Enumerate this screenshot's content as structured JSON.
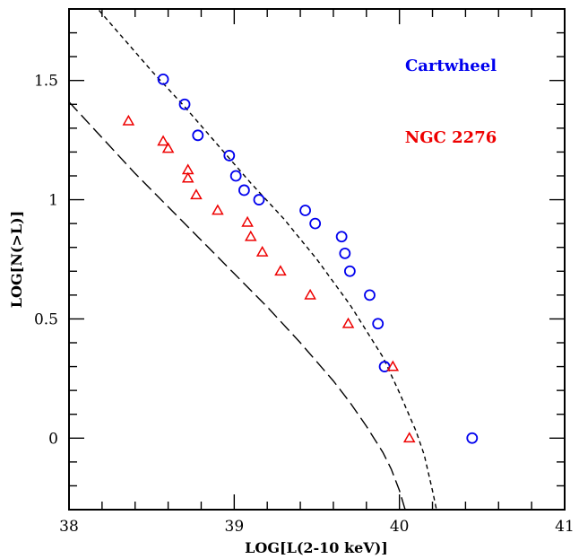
{
  "chart_data": {
    "type": "scatter",
    "xlabel": "LOG[L(2-10 keV)]",
    "ylabel": "LOG[N(>L)]",
    "xlim": [
      38,
      41
    ],
    "ylim": [
      -0.3,
      1.8
    ],
    "x_ticks": [
      {
        "value": 38,
        "label": "38"
      },
      {
        "value": 39,
        "label": "39"
      },
      {
        "value": 40,
        "label": "40"
      },
      {
        "value": 41,
        "label": "41"
      }
    ],
    "y_ticks": [
      {
        "value": 0,
        "label": "0"
      },
      {
        "value": 0.5,
        "label": "0.5"
      },
      {
        "value": 1,
        "label": "1"
      },
      {
        "value": 1.5,
        "label": "1.5"
      }
    ],
    "x_minor_step": 0.2,
    "y_minor_step": 0.1,
    "legend_placement": "top-right",
    "series": [
      {
        "name": "Cartwheel",
        "marker": "circle",
        "color": "#0000ee",
        "points": [
          [
            38.57,
            1.505
          ],
          [
            38.7,
            1.4
          ],
          [
            38.78,
            1.27
          ],
          [
            38.97,
            1.185
          ],
          [
            39.01,
            1.1
          ],
          [
            39.06,
            1.04
          ],
          [
            39.15,
            1.0
          ],
          [
            39.43,
            0.955
          ],
          [
            39.49,
            0.9
          ],
          [
            39.65,
            0.845
          ],
          [
            39.67,
            0.775
          ],
          [
            39.7,
            0.7
          ],
          [
            39.82,
            0.6
          ],
          [
            39.87,
            0.48
          ],
          [
            39.91,
            0.3
          ],
          [
            40.44,
            0.0
          ]
        ]
      },
      {
        "name": "NGC 2276",
        "marker": "triangle",
        "color": "#ee0000",
        "points": [
          [
            38.36,
            1.33
          ],
          [
            38.57,
            1.245
          ],
          [
            38.6,
            1.215
          ],
          [
            38.72,
            1.125
          ],
          [
            38.72,
            1.09
          ],
          [
            38.77,
            1.02
          ],
          [
            38.9,
            0.955
          ],
          [
            39.08,
            0.905
          ],
          [
            39.1,
            0.845
          ],
          [
            39.17,
            0.78
          ],
          [
            39.28,
            0.7
          ],
          [
            39.46,
            0.6
          ],
          [
            39.69,
            0.48
          ],
          [
            39.96,
            0.3
          ],
          [
            40.06,
            0.0
          ]
        ]
      }
    ],
    "curves": [
      {
        "style": "short-dashed",
        "points": [
          [
            38.15,
            1.82
          ],
          [
            38.3,
            1.7
          ],
          [
            38.5,
            1.54
          ],
          [
            38.7,
            1.39
          ],
          [
            38.9,
            1.23
          ],
          [
            39.1,
            1.07
          ],
          [
            39.3,
            0.92
          ],
          [
            39.5,
            0.75
          ],
          [
            39.7,
            0.56
          ],
          [
            39.8,
            0.45
          ],
          [
            39.9,
            0.34
          ],
          [
            40.0,
            0.19
          ],
          [
            40.1,
            0.03
          ],
          [
            40.15,
            -0.07
          ],
          [
            40.2,
            -0.22
          ],
          [
            40.23,
            -0.32
          ]
        ]
      },
      {
        "style": "long-dashed",
        "points": [
          [
            38.0,
            1.41
          ],
          [
            38.2,
            1.26
          ],
          [
            38.4,
            1.11
          ],
          [
            38.6,
            0.97
          ],
          [
            38.8,
            0.83
          ],
          [
            39.0,
            0.69
          ],
          [
            39.2,
            0.55
          ],
          [
            39.4,
            0.4
          ],
          [
            39.6,
            0.24
          ],
          [
            39.7,
            0.15
          ],
          [
            39.8,
            0.05
          ],
          [
            39.9,
            -0.06
          ],
          [
            39.95,
            -0.13
          ],
          [
            40.0,
            -0.22
          ],
          [
            40.03,
            -0.29
          ],
          [
            40.05,
            -0.33
          ]
        ]
      }
    ]
  }
}
